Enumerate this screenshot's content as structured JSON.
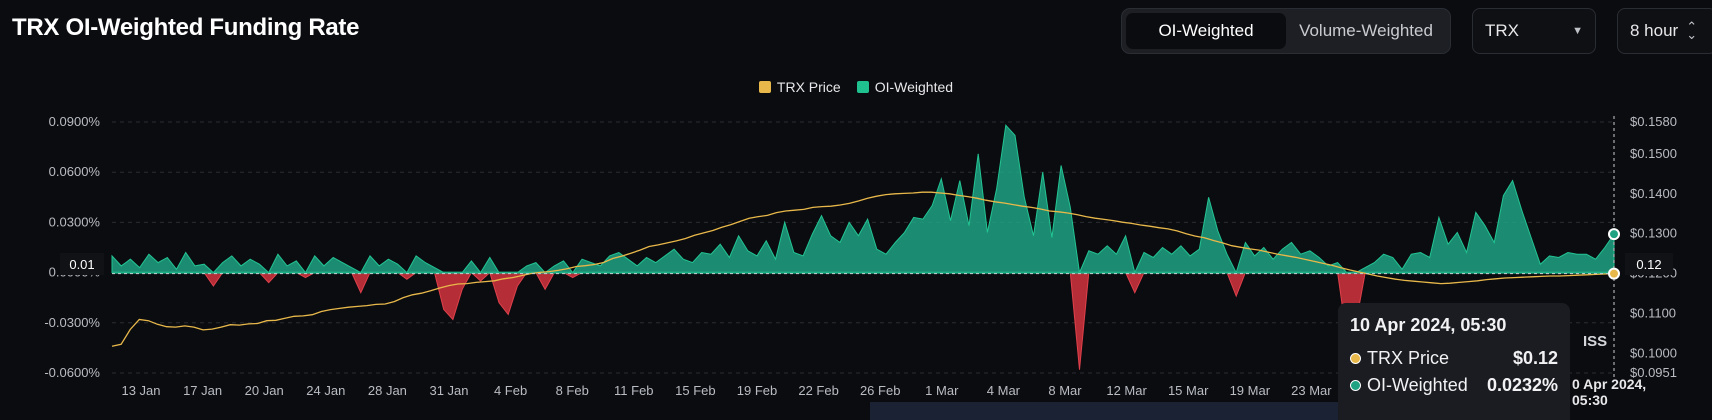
{
  "title": "TRX OI-Weighted Funding Rate",
  "segmented": {
    "options": [
      "OI-Weighted",
      "Volume-Weighted"
    ],
    "active": "OI-Weighted"
  },
  "asset_select": {
    "value": "TRX"
  },
  "interval_select": {
    "value": "8 hour"
  },
  "colors": {
    "price": "#e8b84a",
    "positive": "#1fa383",
    "negative": "#c8323c",
    "background": "#0b0c10"
  },
  "crosshair": {
    "left_label": "0.01",
    "right_label": "0.12",
    "x_label": "0 Apr 2024, 05:30"
  },
  "tooltip": {
    "date": "10 Apr 2024, 05:30",
    "rows": [
      {
        "label": "TRX Price",
        "value": "$0.12",
        "color": "#e8b84a"
      },
      {
        "label": "OI-Weighted",
        "value": "0.0232%",
        "color": "#1fa383"
      }
    ]
  },
  "overlay_fragment": "ISS",
  "chart_data": {
    "type": "area",
    "legend": [
      "TRX Price",
      "OI-Weighted"
    ],
    "legend_position": "top-center",
    "grid": true,
    "x_ticks": [
      "13 Jan",
      "17 Jan",
      "20 Jan",
      "24 Jan",
      "28 Jan",
      "31 Jan",
      "4 Feb",
      "8 Feb",
      "11 Feb",
      "15 Feb",
      "19 Feb",
      "22 Feb",
      "26 Feb",
      "1 Mar",
      "4 Mar",
      "8 Mar",
      "12 Mar",
      "15 Mar",
      "19 Mar",
      "23 Mar"
    ],
    "y_left": {
      "ticks": [
        "0.0900%",
        "0.0600%",
        "0.0300%",
        "0.0000%",
        "-0.0300%",
        "-0.0600%"
      ],
      "range": [
        -0.06,
        0.09
      ]
    },
    "y_right": {
      "ticks": [
        "$0.1580",
        "$0.1500",
        "$0.1400",
        "$0.1300",
        "$0.1200",
        "$0.1100",
        "$0.1000",
        "$0.0951"
      ],
      "range": [
        0.0951,
        0.158
      ]
    },
    "series": [
      {
        "name": "OI-Weighted",
        "kind": "area",
        "date_range": [
          "10 Jan 2024",
          "10 Apr 2024"
        ],
        "values": [
          0.01,
          0.004,
          0.008,
          0.003,
          0.011,
          0.006,
          0.009,
          0.002,
          0.012,
          0.004,
          0.005,
          -0.008,
          0.006,
          0.01,
          0.004,
          0.008,
          0.005,
          -0.006,
          0.011,
          0.004,
          0.007,
          -0.003,
          0.01,
          0.004,
          0.009,
          0.006,
          0.003,
          -0.012,
          0.01,
          0.004,
          0.008,
          0.005,
          -0.004,
          0.01,
          0.006,
          0.003,
          -0.022,
          -0.028,
          -0.01,
          0.007,
          -0.005,
          0.009,
          -0.018,
          -0.025,
          -0.008,
          0.004,
          0.006,
          -0.01,
          0.004,
          0.007,
          -0.003,
          0.008,
          0.006,
          0.004,
          0.01,
          0.012,
          0.008,
          0.004,
          0.009,
          0.006,
          0.01,
          0.014,
          0.008,
          0.006,
          0.012,
          0.011,
          0.017,
          0.009,
          0.022,
          0.013,
          0.01,
          0.019,
          0.008,
          0.03,
          0.012,
          0.01,
          0.023,
          0.034,
          0.022,
          0.018,
          0.03,
          0.022,
          0.032,
          0.014,
          0.011,
          0.018,
          0.024,
          0.033,
          0.032,
          0.04,
          0.056,
          0.031,
          0.055,
          0.028,
          0.071,
          0.024,
          0.05,
          0.088,
          0.082,
          0.045,
          0.022,
          0.06,
          0.021,
          0.064,
          0.039,
          -0.058,
          0.013,
          0.011,
          0.016,
          0.011,
          0.022,
          -0.012,
          0.012,
          0.009,
          0.015,
          0.011,
          0.016,
          0.01,
          0.014,
          0.045,
          0.025,
          0.011,
          -0.014,
          0.018,
          0.01,
          0.015,
          0.008,
          0.014,
          0.018,
          0.011,
          0.013,
          0.009,
          0.004,
          0.006,
          -0.039,
          -0.03,
          0.003,
          0.006,
          0.011,
          0.009,
          0.002,
          0.011,
          0.012,
          0.009,
          0.033,
          0.017,
          0.024,
          0.012,
          0.036,
          0.028,
          0.018,
          0.046,
          0.055,
          0.037,
          0.021,
          0.005,
          0.01,
          0.009,
          0.012,
          0.011,
          0.011,
          0.008,
          0.015,
          0.023
        ]
      },
      {
        "name": "TRX Price",
        "kind": "line",
        "date_range": [
          "10 Jan 2024",
          "10 Apr 2024"
        ],
        "values": [
          0.1018,
          0.1023,
          0.106,
          0.1085,
          0.1082,
          0.1073,
          0.1067,
          0.1066,
          0.1069,
          0.1066,
          0.1059,
          0.1061,
          0.1066,
          0.1072,
          0.1071,
          0.1074,
          0.1075,
          0.1082,
          0.1083,
          0.1088,
          0.1093,
          0.1094,
          0.1097,
          0.1105,
          0.111,
          0.1113,
          0.1116,
          0.1118,
          0.112,
          0.1123,
          0.1124,
          0.113,
          0.114,
          0.1147,
          0.1151,
          0.1157,
          0.1164,
          0.117,
          0.1174,
          0.1175,
          0.1178,
          0.118,
          0.1182,
          0.1187,
          0.119,
          0.1195,
          0.12,
          0.1203,
          0.1205,
          0.1208,
          0.1212,
          0.1218,
          0.122,
          0.1223,
          0.1228,
          0.1238,
          0.1244,
          0.1251,
          0.1259,
          0.1268,
          0.1272,
          0.1277,
          0.1282,
          0.1288,
          0.1296,
          0.1302,
          0.1308,
          0.1316,
          0.1323,
          0.1331,
          0.1339,
          0.1343,
          0.1346,
          0.1353,
          0.1357,
          0.1359,
          0.1361,
          0.1366,
          0.1368,
          0.1369,
          0.1372,
          0.1376,
          0.1382,
          0.1389,
          0.1394,
          0.1398,
          0.14,
          0.1401,
          0.1402,
          0.1404,
          0.1404,
          0.1402,
          0.14,
          0.1396,
          0.1393,
          0.1389,
          0.1384,
          0.138,
          0.1377,
          0.1373,
          0.1369,
          0.1366,
          0.1362,
          0.1357,
          0.1355,
          0.1352,
          0.1348,
          0.1343,
          0.1339,
          0.1336,
          0.1333,
          0.1329,
          0.1326,
          0.1322,
          0.1319,
          0.1315,
          0.1312,
          0.1307,
          0.13,
          0.1294,
          0.129,
          0.1283,
          0.1277,
          0.127,
          0.1266,
          0.1262,
          0.1259,
          0.1254,
          0.1249,
          0.1245,
          0.1241,
          0.1236,
          0.1231,
          0.1226,
          0.1221,
          0.1215,
          0.1209,
          0.1204,
          0.1199,
          0.1194,
          0.119,
          0.1186,
          0.1183,
          0.1181,
          0.1179,
          0.1177,
          0.1175,
          0.1176,
          0.1178,
          0.118,
          0.1182,
          0.1185,
          0.1187,
          0.1189,
          0.119,
          0.1191,
          0.1192,
          0.1193,
          0.1194,
          0.1194,
          0.1195,
          0.1196,
          0.1197,
          0.1198,
          0.1199,
          0.12
        ]
      }
    ]
  }
}
